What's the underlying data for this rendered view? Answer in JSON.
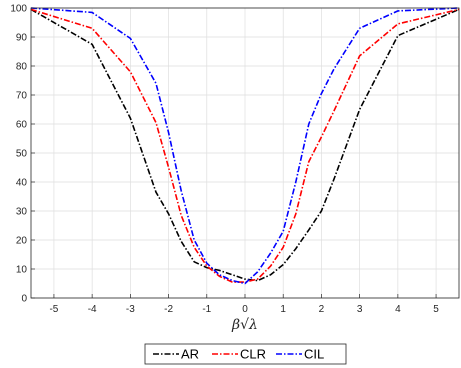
{
  "chart_data": {
    "type": "line",
    "title": "",
    "xlabel": "β√λ",
    "ylabel": "",
    "xlim": [
      -5.6,
      5.6
    ],
    "ylim": [
      0,
      100
    ],
    "xticks": [
      -5,
      -4,
      -3,
      -2,
      -1,
      0,
      1,
      2,
      3,
      4,
      5
    ],
    "yticks": [
      0,
      10,
      20,
      30,
      40,
      50,
      60,
      70,
      80,
      90,
      100
    ],
    "grid": true,
    "legend_position": "bottom",
    "x": [
      -5.6,
      -4,
      -3,
      -2.33,
      -2,
      -1.67,
      -1.33,
      -1,
      -0.67,
      -0.33,
      0,
      0.33,
      0.67,
      1,
      1.33,
      1.67,
      2,
      2.33,
      3,
      4,
      5.6
    ],
    "series": [
      {
        "name": "AR",
        "color": "#000000",
        "values": [
          99.5,
          87.5,
          62,
          36.5,
          29,
          19.5,
          12.5,
          10.5,
          9.5,
          8,
          6.5,
          6,
          8,
          11.5,
          17,
          23.5,
          30,
          41,
          65,
          90.5,
          99.5
        ]
      },
      {
        "name": "CLR",
        "color": "#ff0000",
        "values": [
          99.5,
          93,
          78,
          60.5,
          45,
          28.5,
          17.5,
          11,
          7.5,
          5.5,
          5.5,
          6.5,
          11,
          17.5,
          29,
          47,
          55.5,
          64.5,
          83.5,
          94.5,
          99.5
        ]
      },
      {
        "name": "CIL",
        "color": "#0000ff",
        "values": [
          100,
          98.5,
          89.5,
          74,
          57,
          37,
          20,
          12,
          8,
          6,
          5,
          9,
          15.5,
          23,
          40,
          60,
          70.5,
          79,
          93,
          99,
          100
        ]
      }
    ]
  }
}
